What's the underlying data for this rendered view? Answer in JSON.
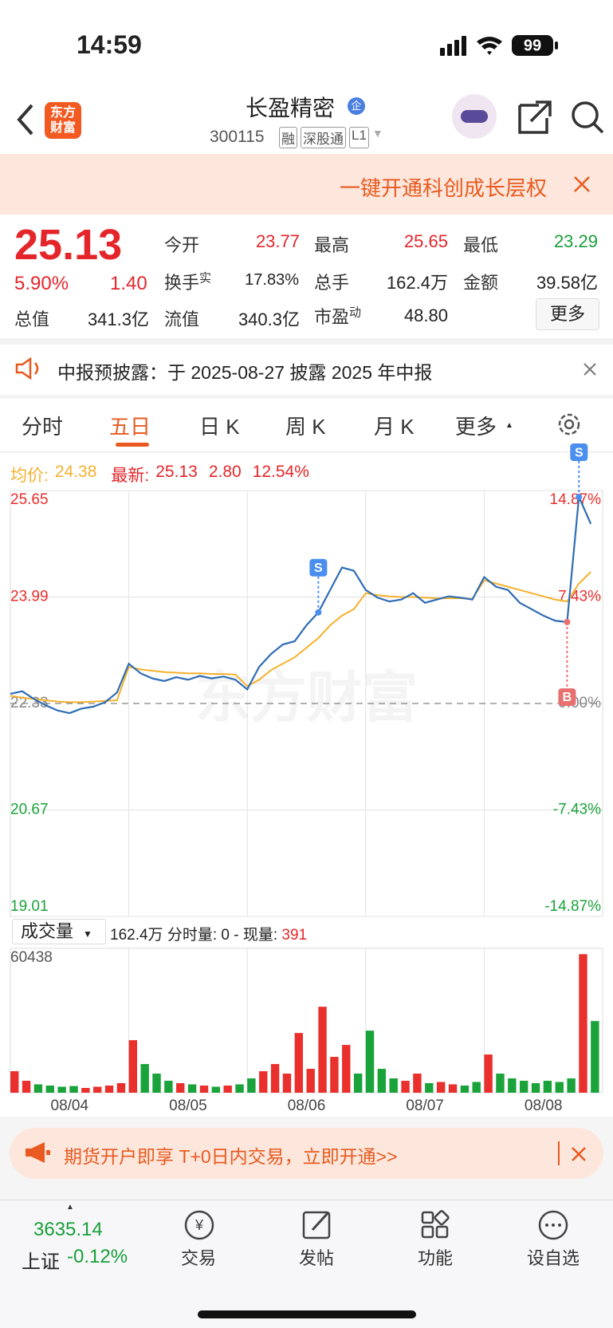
{
  "status": {
    "time": "14:59",
    "battery": "99"
  },
  "header": {
    "logo": [
      "东方",
      "财富"
    ],
    "name": "长盈精密",
    "badge": "企",
    "code": "300115",
    "tags": [
      "融",
      "深股通",
      "L1"
    ]
  },
  "banner": {
    "text": "一键开通科创成长层权"
  },
  "quote": {
    "price": "25.13",
    "change_pct": "5.90%",
    "change": "1.40",
    "more": "更多",
    "fields": [
      {
        "label": "今开",
        "value": "23.77"
      },
      {
        "label": "最高",
        "value": "25.65"
      },
      {
        "label": "最低",
        "value": "23.29"
      },
      {
        "label": "换手",
        "sup": "实",
        "value": "17.83%"
      },
      {
        "label": "总手",
        "value": "162.4万"
      },
      {
        "label": "金额",
        "value": "39.58亿"
      },
      {
        "label": "总值",
        "value": "341.3亿"
      },
      {
        "label": "流值",
        "value": "340.3亿"
      },
      {
        "label": "市盈",
        "sup": "动",
        "value": "48.80"
      }
    ]
  },
  "notice": {
    "text": "中报预披露：于 2025-08-27 披露 2025 年中报"
  },
  "tabs": [
    "分时",
    "五日",
    "日 K",
    "周 K",
    "月 K",
    "更多"
  ],
  "legend": {
    "avg_label": "均价:",
    "avg": "24.38",
    "last_label": "最新:",
    "last": "25.13",
    "change": "2.80",
    "pct": "12.54%"
  },
  "chart_data": {
    "type": "line",
    "watermark": "东方财富",
    "categories": [
      "08/04",
      "08/05",
      "08/06",
      "08/07",
      "08/08"
    ],
    "x": [
      0,
      0.1,
      0.2,
      0.3,
      0.4,
      0.5,
      0.6,
      0.7,
      0.8,
      0.9,
      1,
      1.1,
      1.2,
      1.3,
      1.4,
      1.5,
      1.6,
      1.7,
      1.8,
      1.9,
      2,
      2.1,
      2.2,
      2.3,
      2.4,
      2.5,
      2.6,
      2.7,
      2.8,
      2.9,
      3,
      3.1,
      3.2,
      3.3,
      3.4,
      3.5,
      3.6,
      3.7,
      3.8,
      3.9,
      4,
      4.1,
      4.2,
      4.3,
      4.4,
      4.5,
      4.6,
      4.7,
      4.8,
      4.9
    ],
    "xlim": [
      0,
      5
    ],
    "series": [
      {
        "color": "#2f6db5",
        "values": [
          22.48,
          22.52,
          22.4,
          22.3,
          22.22,
          22.18,
          22.25,
          22.28,
          22.35,
          22.5,
          22.95,
          22.8,
          22.72,
          22.68,
          22.74,
          22.7,
          22.76,
          22.72,
          22.75,
          22.7,
          22.55,
          22.9,
          23.1,
          23.25,
          23.3,
          23.55,
          23.75,
          24.1,
          24.45,
          24.4,
          24.1,
          23.98,
          23.92,
          23.95,
          24.05,
          23.9,
          23.95,
          24,
          23.98,
          23.95,
          24.3,
          24.15,
          24.1,
          23.9,
          23.8,
          23.7,
          23.62,
          23.6,
          25.55,
          25.13
        ]
      },
      {
        "color": "#f5b12c",
        "values": [
          22.45,
          22.42,
          22.4,
          22.38,
          22.36,
          22.35,
          22.35,
          22.36,
          22.37,
          22.38,
          22.9,
          22.86,
          22.84,
          22.82,
          22.81,
          22.8,
          22.8,
          22.79,
          22.79,
          22.78,
          22.6,
          22.7,
          22.85,
          22.95,
          23.05,
          23.2,
          23.35,
          23.55,
          23.7,
          23.8,
          24.05,
          24.02,
          24,
          23.99,
          23.99,
          23.98,
          23.97,
          23.97,
          23.97,
          23.96,
          24.25,
          24.2,
          24.15,
          24.1,
          24.05,
          24,
          23.95,
          23.92,
          24.2,
          24.38
        ]
      }
    ],
    "ylim": [
      19.01,
      25.65
    ],
    "yticks": [
      25.65,
      23.99,
      22.33,
      20.67,
      19.01
    ],
    "y2lim": [
      -14.87,
      14.87
    ],
    "y2ticks": [
      {
        "value": 14.87,
        "label": "14.87%"
      },
      {
        "value": 7.43,
        "label": "7.43%"
      },
      {
        "value": 0,
        "label": "0.00%"
      },
      {
        "value": -7.43,
        "label": "-7.43%"
      },
      {
        "value": -14.87,
        "label": "-14.87%"
      }
    ],
    "up_color": "#e9302d",
    "down_color": "#1aa33a",
    "grid": true,
    "markers": [
      {
        "label": "S",
        "x": 2.6,
        "color": "#4a8ff0"
      },
      {
        "label": "S",
        "x": 4.8,
        "color": "#4a8ff0"
      },
      {
        "label": "B",
        "x": 4.7,
        "color": "#e87070"
      }
    ],
    "volume": {
      "label": "成交量",
      "total": "162.4万",
      "detail": "分时量: 0 - 现量:",
      "current": "391",
      "ylim": [
        0,
        60438
      ],
      "yticks": [
        60438
      ],
      "values": [
        9000,
        5000,
        3500,
        3000,
        2500,
        2800,
        2000,
        2500,
        3000,
        4000,
        22000,
        12000,
        8000,
        5000,
        4000,
        3500,
        3000,
        2500,
        3000,
        3500,
        6000,
        9000,
        12000,
        8000,
        25000,
        10000,
        36000,
        15000,
        20000,
        8000,
        26000,
        10000,
        6000,
        5000,
        8000,
        4000,
        4500,
        3500,
        3000,
        4500,
        16000,
        8000,
        6000,
        5000,
        4000,
        5000,
        4500,
        6000,
        58000,
        30000
      ]
    }
  },
  "ad": {
    "text": "期货开户即享 T+0日内交易，立即开通>>"
  },
  "bottom": {
    "index_value": "3635.14",
    "index_name": "上证",
    "index_change": "-0.12%",
    "nav": [
      "交易",
      "发帖",
      "功能",
      "设自选"
    ]
  }
}
